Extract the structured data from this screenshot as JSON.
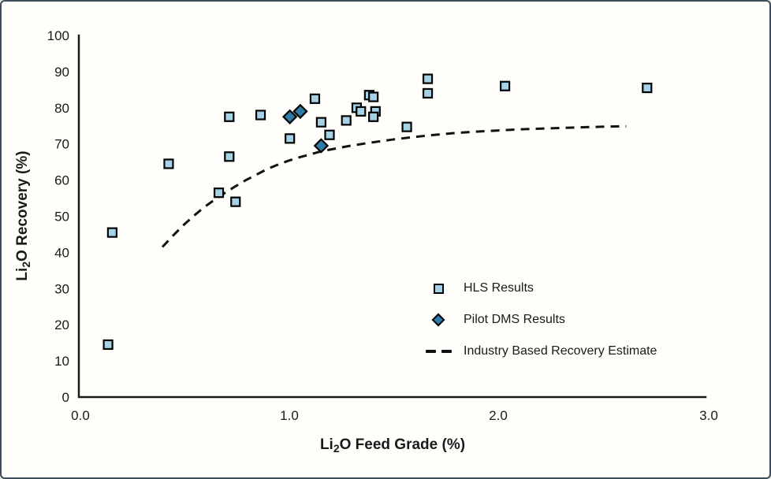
{
  "frame": {
    "border_color": "#3e4c5c",
    "background": "#fffefb"
  },
  "chart_data": {
    "type": "scatter",
    "title": "",
    "xlabel": "Li2O Feed Grade (%)",
    "ylabel": "Li2O Recovery (%)",
    "xlabel_parts": {
      "pre": "Li",
      "sub": "2",
      "post": "O Feed Grade (%)"
    },
    "ylabel_parts": {
      "pre": "Li",
      "sub": "2",
      "post": "O Recovery (%)"
    },
    "xlim": [
      0,
      3
    ],
    "ylim": [
      0,
      100
    ],
    "grid": "off",
    "x_tick_values": [
      0,
      1,
      2,
      3
    ],
    "x_tick_labels": [
      "0.0",
      "1.0",
      "2.0",
      "3.0"
    ],
    "y_tick_values": [
      0,
      10,
      20,
      30,
      40,
      50,
      60,
      70,
      80,
      90,
      100
    ],
    "y_tick_labels": [
      "0",
      "10",
      "20",
      "30",
      "40",
      "50",
      "60",
      "70",
      "80",
      "90",
      "100"
    ],
    "legend_position": "inside-bottom-right",
    "colors": {
      "hls_fill": "#a6d2e7",
      "dms_fill": "#2e7ca6",
      "marker_stroke": "#000000",
      "line_color": "#111111",
      "axis_color": "#1a1a1a"
    },
    "series": [
      {
        "name": "HLS Results",
        "marker": "square",
        "fill": "#a6d2e7",
        "stroke": "#000000",
        "points": [
          [
            0.14,
            14.5
          ],
          [
            0.16,
            45.5
          ],
          [
            0.43,
            64.5
          ],
          [
            0.67,
            56.5
          ],
          [
            0.72,
            66.5
          ],
          [
            0.75,
            54.0
          ],
          [
            0.72,
            77.5
          ],
          [
            0.87,
            78.0
          ],
          [
            1.01,
            71.5
          ],
          [
            1.13,
            82.5
          ],
          [
            1.16,
            76.0
          ],
          [
            1.2,
            72.5
          ],
          [
            1.28,
            76.5
          ],
          [
            1.33,
            80.0
          ],
          [
            1.35,
            79.0
          ],
          [
            1.39,
            83.5
          ],
          [
            1.41,
            83.0
          ],
          [
            1.42,
            79.0
          ],
          [
            1.41,
            77.5
          ],
          [
            1.57,
            74.7
          ],
          [
            1.67,
            88.0
          ],
          [
            1.67,
            84.0
          ],
          [
            2.04,
            86.0
          ],
          [
            2.72,
            85.5
          ]
        ]
      },
      {
        "name": "Pilot DMS Results",
        "marker": "diamond",
        "fill": "#2e7ca6",
        "stroke": "#000000",
        "points": [
          [
            1.01,
            77.5
          ],
          [
            1.06,
            79.0
          ],
          [
            1.16,
            69.5
          ]
        ]
      },
      {
        "name": "Industry Based Recovery Estimate",
        "marker": "dashed-line",
        "color": "#111111",
        "points": [
          [
            0.4,
            41.5
          ],
          [
            0.45,
            44.6
          ],
          [
            0.5,
            47.5
          ],
          [
            0.55,
            50.1
          ],
          [
            0.6,
            52.5
          ],
          [
            0.65,
            54.6
          ],
          [
            0.7,
            56.5
          ],
          [
            0.75,
            58.3
          ],
          [
            0.8,
            60.0
          ],
          [
            0.85,
            61.5
          ],
          [
            0.9,
            63.0
          ],
          [
            0.95,
            64.2
          ],
          [
            1.0,
            65.3
          ],
          [
            1.05,
            66.2
          ],
          [
            1.1,
            67.0
          ],
          [
            1.15,
            67.8
          ],
          [
            1.2,
            68.4
          ],
          [
            1.3,
            69.5
          ],
          [
            1.4,
            70.4
          ],
          [
            1.5,
            71.2
          ],
          [
            1.6,
            71.9
          ],
          [
            1.7,
            72.5
          ],
          [
            1.8,
            73.0
          ],
          [
            1.9,
            73.4
          ],
          [
            2.0,
            73.7
          ],
          [
            2.1,
            74.0
          ],
          [
            2.2,
            74.2
          ],
          [
            2.3,
            74.4
          ],
          [
            2.4,
            74.6
          ],
          [
            2.5,
            74.75
          ],
          [
            2.62,
            74.9
          ]
        ]
      }
    ]
  }
}
